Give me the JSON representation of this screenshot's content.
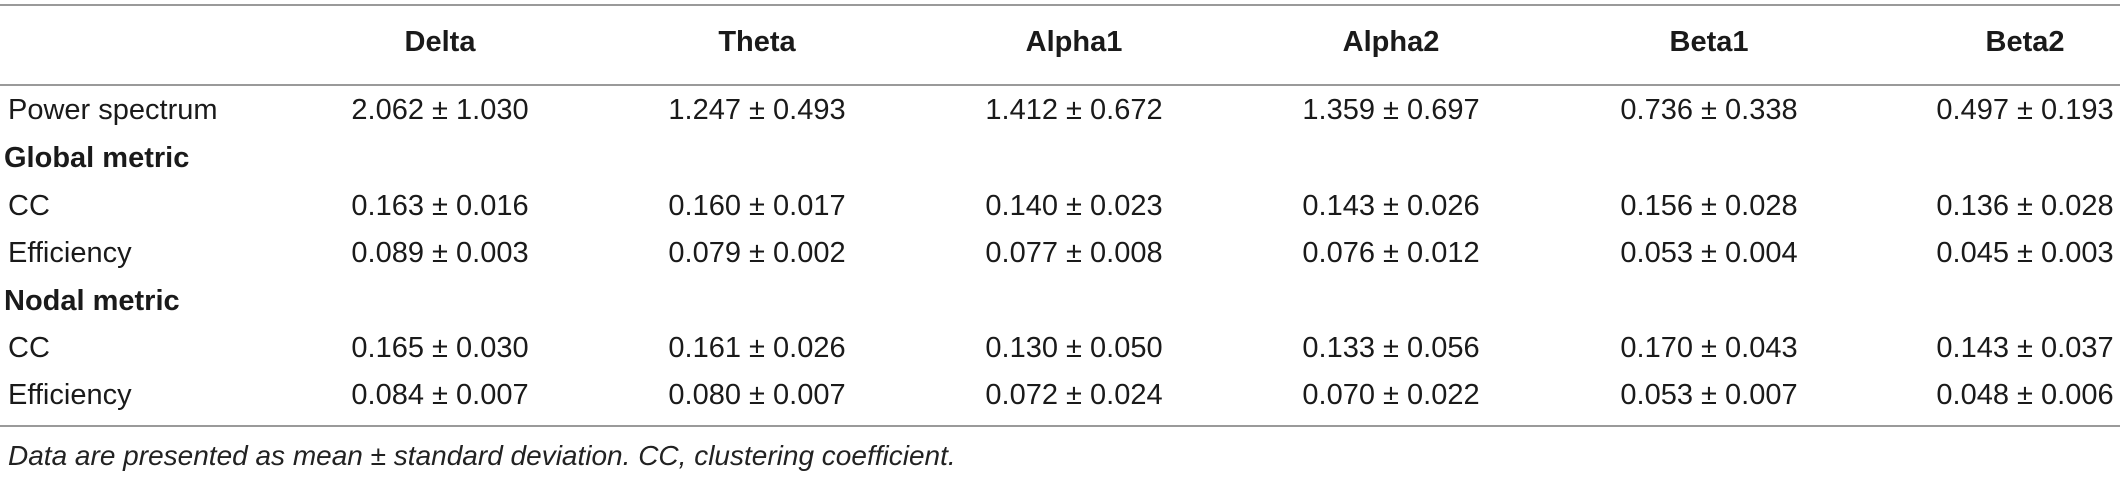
{
  "columns": [
    "Delta",
    "Theta",
    "Alpha1",
    "Alpha2",
    "Beta1",
    "Beta2"
  ],
  "rows": [
    {
      "type": "data",
      "label": "Power spectrum",
      "values": [
        "2.062 ± 1.030",
        "1.247 ± 0.493",
        "1.412 ± 0.672",
        "1.359 ± 0.697",
        "0.736 ± 0.338",
        "0.497 ± 0.193"
      ]
    },
    {
      "type": "section",
      "label": "Global metric"
    },
    {
      "type": "data",
      "label": "CC",
      "values": [
        "0.163 ± 0.016",
        "0.160 ± 0.017",
        "0.140 ± 0.023",
        "0.143 ± 0.026",
        "0.156 ± 0.028",
        "0.136 ± 0.028"
      ]
    },
    {
      "type": "data",
      "label": "Efficiency",
      "values": [
        "0.089 ± 0.003",
        "0.079 ± 0.002",
        "0.077 ± 0.008",
        "0.076 ± 0.012",
        "0.053 ± 0.004",
        "0.045 ± 0.003"
      ]
    },
    {
      "type": "section",
      "label": "Nodal metric"
    },
    {
      "type": "data",
      "label": "CC",
      "values": [
        "0.165 ± 0.030",
        "0.161 ± 0.026",
        "0.130 ± 0.050",
        "0.133 ± 0.056",
        "0.170 ± 0.043",
        "0.143 ± 0.037"
      ]
    },
    {
      "type": "data",
      "label": "Efficiency",
      "values": [
        "0.084 ± 0.007",
        "0.080 ± 0.007",
        "0.072 ± 0.024",
        "0.070 ± 0.022",
        "0.053 ± 0.007",
        "0.048 ± 0.006"
      ]
    }
  ],
  "footnote": "Data are presented as mean ± standard deviation. CC, clustering coefficient."
}
